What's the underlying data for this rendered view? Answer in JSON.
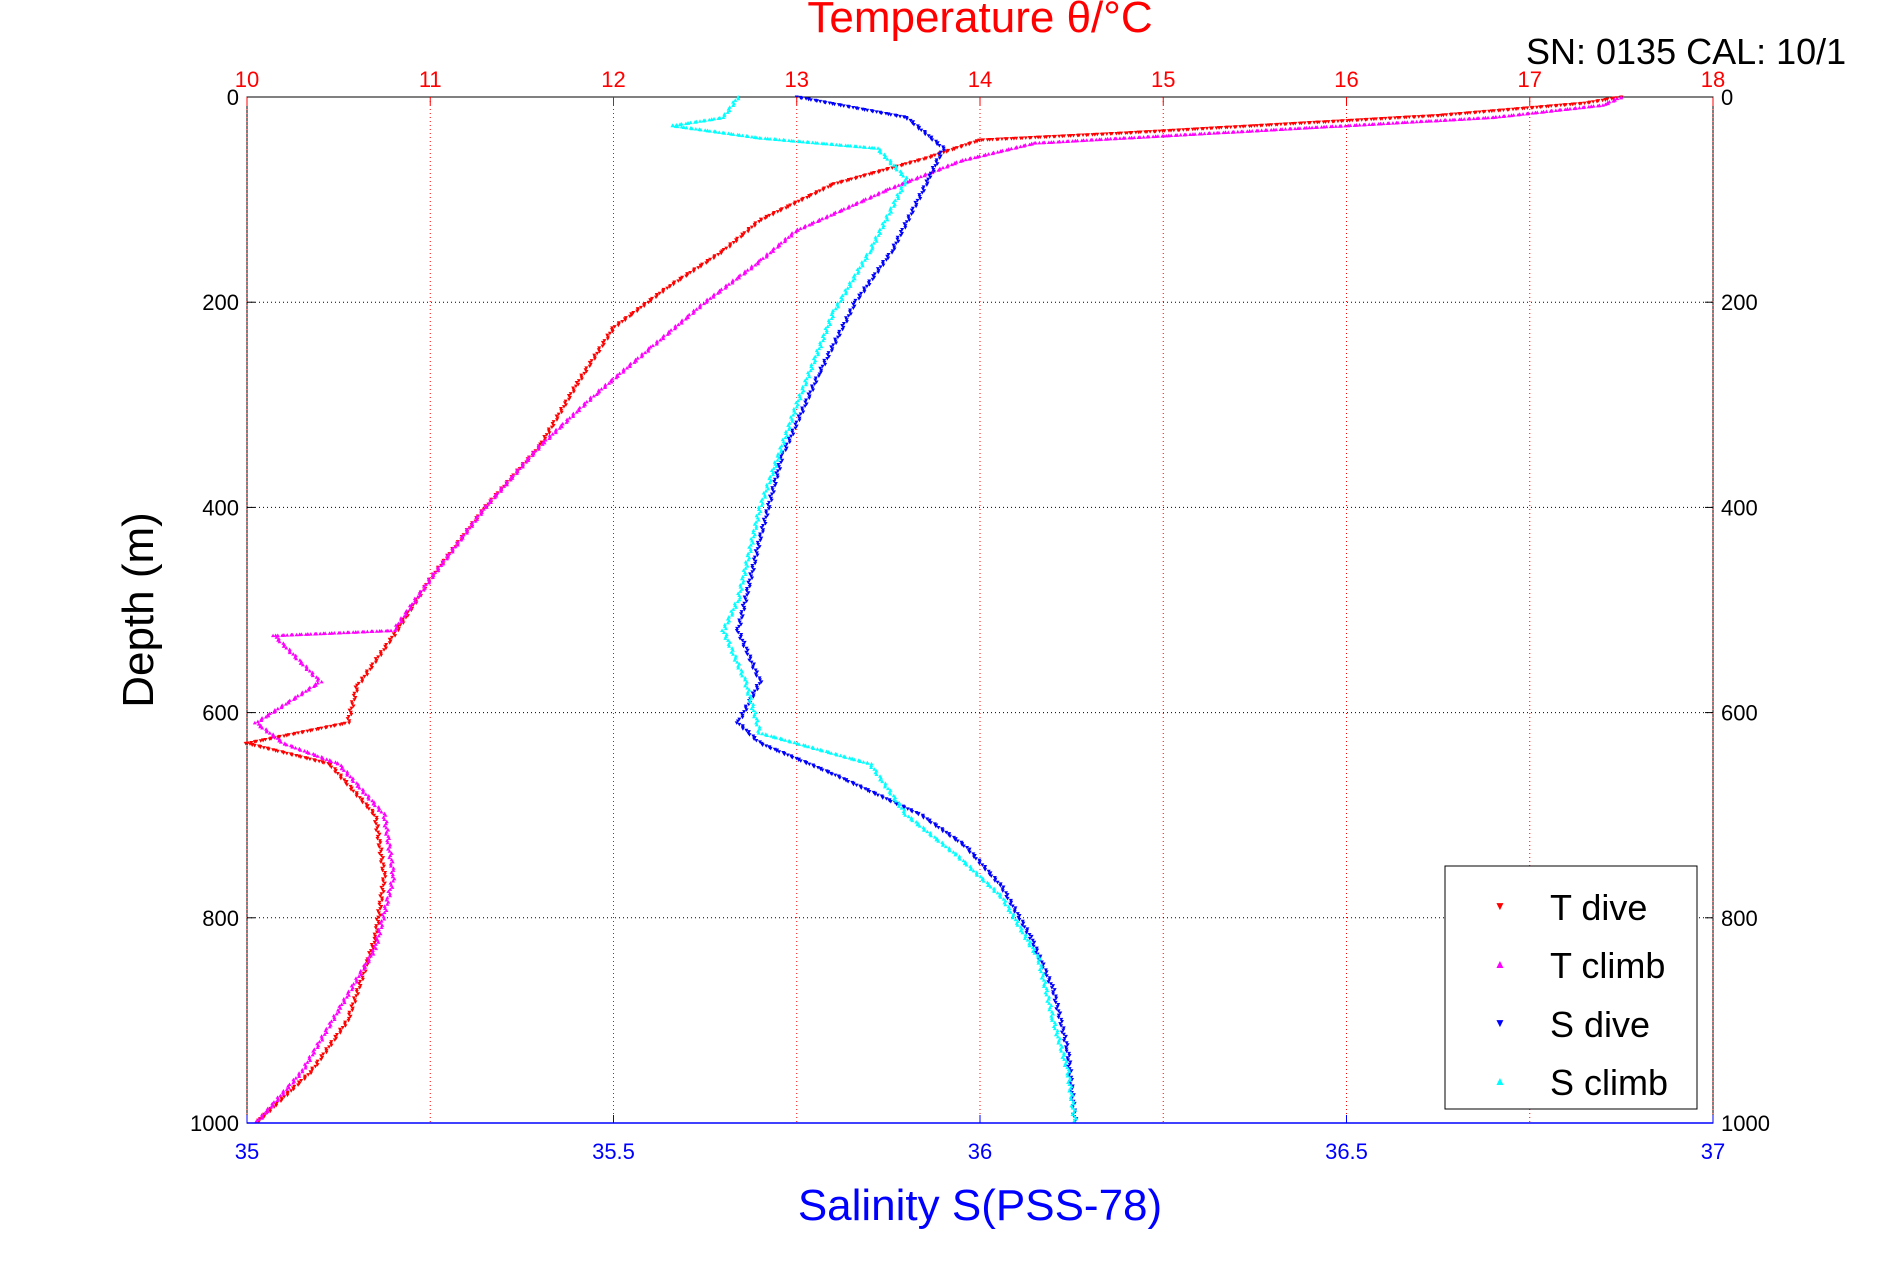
{
  "header_text": "SN: 0135  CAL: 10/1",
  "chart_data": {
    "type": "scatter",
    "title": "Temperature θ/°C",
    "xlabel": "Salinity S(PSS-78)",
    "ylabel": "Depth (m)",
    "xlim_salinity": [
      35,
      37
    ],
    "xlim_temperature": [
      10,
      18
    ],
    "ylim_depth": [
      1000,
      0
    ],
    "y_reversed": true,
    "grid": true,
    "legend_position": "bottom-right",
    "x_ticks_salinity": [
      "35",
      "35.5",
      "36",
      "36.5",
      "37"
    ],
    "x_ticks_temperature": [
      "10",
      "11",
      "12",
      "13",
      "14",
      "15",
      "16",
      "17",
      "18"
    ],
    "y_ticks": [
      "0",
      "200",
      "400",
      "600",
      "800",
      "1000"
    ],
    "colors": {
      "temperature_axis": "#ff0000",
      "salinity_axis": "#0000ff",
      "t_dive": "#ff0000",
      "t_climb": "#ff00ff",
      "s_dive": "#0000ff",
      "s_climb": "#00ffff"
    },
    "series": [
      {
        "name": "T dive",
        "axis": "temperature",
        "marker": "down-triangle",
        "points": [
          [
            17.5,
            0
          ],
          [
            17.3,
            6
          ],
          [
            16.5,
            18
          ],
          [
            15.5,
            28
          ],
          [
            14.8,
            35
          ],
          [
            14.0,
            42
          ],
          [
            13.7,
            60
          ],
          [
            13.2,
            85
          ],
          [
            12.8,
            120
          ],
          [
            12.6,
            150
          ],
          [
            12.3,
            185
          ],
          [
            12.0,
            225
          ],
          [
            11.8,
            280
          ],
          [
            11.6,
            340
          ],
          [
            11.3,
            400
          ],
          [
            11.0,
            470
          ],
          [
            10.8,
            525
          ],
          [
            10.6,
            575
          ],
          [
            10.55,
            610
          ],
          [
            10.0,
            630
          ],
          [
            10.45,
            650
          ],
          [
            10.7,
            700
          ],
          [
            10.75,
            760
          ],
          [
            10.7,
            820
          ],
          [
            10.55,
            900
          ],
          [
            10.35,
            950
          ],
          [
            10.05,
            1000
          ]
        ]
      },
      {
        "name": "T climb",
        "axis": "temperature",
        "marker": "up-triangle",
        "points": [
          [
            17.5,
            0
          ],
          [
            17.4,
            8
          ],
          [
            16.8,
            20
          ],
          [
            15.8,
            30
          ],
          [
            15.0,
            38
          ],
          [
            14.3,
            45
          ],
          [
            13.9,
            62
          ],
          [
            13.5,
            90
          ],
          [
            13.0,
            130
          ],
          [
            12.8,
            160
          ],
          [
            12.5,
            200
          ],
          [
            12.2,
            245
          ],
          [
            11.9,
            290
          ],
          [
            11.6,
            340
          ],
          [
            11.3,
            400
          ],
          [
            11.0,
            470
          ],
          [
            10.8,
            520
          ],
          [
            10.15,
            525
          ],
          [
            10.4,
            570
          ],
          [
            10.05,
            610
          ],
          [
            10.2,
            630
          ],
          [
            10.5,
            650
          ],
          [
            10.75,
            700
          ],
          [
            10.8,
            760
          ],
          [
            10.7,
            830
          ],
          [
            10.5,
            890
          ],
          [
            10.3,
            950
          ],
          [
            10.05,
            1000
          ]
        ]
      },
      {
        "name": "S dive",
        "axis": "salinity",
        "marker": "down-triangle",
        "points": [
          [
            35.75,
            0
          ],
          [
            35.9,
            20
          ],
          [
            35.95,
            50
          ],
          [
            35.93,
            80
          ],
          [
            35.88,
            150
          ],
          [
            35.83,
            200
          ],
          [
            35.78,
            270
          ],
          [
            35.73,
            350
          ],
          [
            35.7,
            430
          ],
          [
            35.67,
            520
          ],
          [
            35.7,
            570
          ],
          [
            35.67,
            610
          ],
          [
            35.7,
            630
          ],
          [
            35.8,
            660
          ],
          [
            35.92,
            700
          ],
          [
            35.98,
            730
          ],
          [
            36.03,
            770
          ],
          [
            36.07,
            820
          ],
          [
            36.1,
            870
          ],
          [
            36.12,
            930
          ],
          [
            36.13,
            1000
          ]
        ]
      },
      {
        "name": "S climb",
        "axis": "salinity",
        "marker": "up-triangle",
        "points": [
          [
            35.67,
            0
          ],
          [
            35.65,
            20
          ],
          [
            35.58,
            28
          ],
          [
            35.7,
            40
          ],
          [
            35.86,
            50
          ],
          [
            35.9,
            80
          ],
          [
            35.85,
            150
          ],
          [
            35.8,
            210
          ],
          [
            35.75,
            300
          ],
          [
            35.7,
            400
          ],
          [
            35.67,
            490
          ],
          [
            35.65,
            520
          ],
          [
            35.68,
            570
          ],
          [
            35.7,
            620
          ],
          [
            35.85,
            650
          ],
          [
            35.9,
            700
          ],
          [
            35.97,
            740
          ],
          [
            36.03,
            780
          ],
          [
            36.08,
            840
          ],
          [
            36.1,
            900
          ],
          [
            36.12,
            950
          ],
          [
            36.13,
            1000
          ]
        ]
      }
    ]
  }
}
